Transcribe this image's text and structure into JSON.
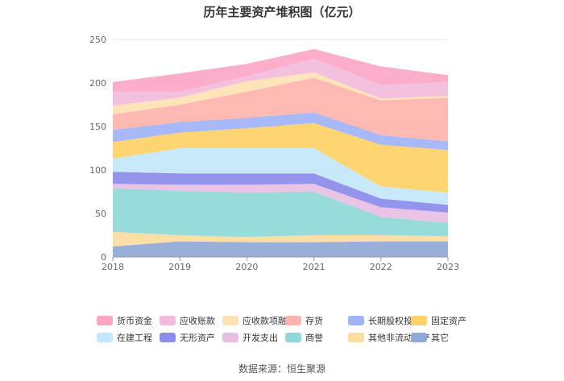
{
  "chart_data": {
    "type": "area",
    "stacked": true,
    "title": "历年主要资产堆积图（亿元）",
    "xlabel": "",
    "ylabel": "",
    "categories": [
      "2018",
      "2019",
      "2020",
      "2021",
      "2022",
      "2023"
    ],
    "ylim": [
      0,
      250
    ],
    "yticks": [
      0,
      50,
      100,
      150,
      200,
      250
    ],
    "grid": true,
    "legend_position": "bottom",
    "series": [
      {
        "name": "其它",
        "color": "#8FA9D6",
        "values": [
          12,
          18,
          17,
          17,
          18,
          18
        ]
      },
      {
        "name": "其他非流动资产",
        "color": "#FCDCA0",
        "values": [
          17,
          7,
          6,
          8,
          7,
          6
        ]
      },
      {
        "name": "商誉",
        "color": "#8ED8D8",
        "values": [
          50,
          51,
          51,
          50,
          21,
          15
        ]
      },
      {
        "name": "开发支出",
        "color": "#E8BFE2",
        "values": [
          5,
          7,
          9,
          9,
          11,
          12
        ]
      },
      {
        "name": "无形资产",
        "color": "#8B8BEB",
        "values": [
          14,
          13,
          13,
          12,
          10,
          9
        ]
      },
      {
        "name": "在建工程",
        "color": "#C2E7FA",
        "values": [
          15,
          29,
          29,
          29,
          14,
          14
        ]
      },
      {
        "name": "固定资产",
        "color": "#FFD166",
        "values": [
          19,
          18,
          23,
          29,
          48,
          49
        ]
      },
      {
        "name": "长期股权投资",
        "color": "#9FB3F7",
        "values": [
          14,
          12,
          12,
          12,
          11,
          10
        ]
      },
      {
        "name": "存货",
        "color": "#FFB3AD",
        "values": [
          18,
          20,
          30,
          40,
          40,
          50
        ]
      },
      {
        "name": "应收款项融资",
        "color": "#FDE3B3",
        "values": [
          10,
          8,
          12,
          6,
          2,
          2
        ]
      },
      {
        "name": "应收账款",
        "color": "#F2BBDB",
        "values": [
          16,
          7,
          6,
          16,
          16,
          16
        ]
      },
      {
        "name": "货币资金",
        "color": "#FCA6C4",
        "values": [
          11,
          21,
          14,
          11,
          21,
          8
        ]
      }
    ]
  },
  "legend_order": [
    "货币资金",
    "应收账款",
    "应收款项融资",
    "存货",
    "长期股权投资",
    "固定资产",
    "在建工程",
    "无形资产",
    "开发支出",
    "商誉",
    "其他非流动资产",
    "其它"
  ],
  "source": "数据来源：恒生聚源"
}
